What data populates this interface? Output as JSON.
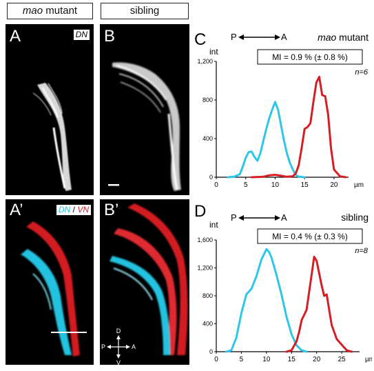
{
  "headers": {
    "mutant_label": {
      "italic": "mao",
      "rest": " mutant"
    },
    "sibling_label": "sibling"
  },
  "panels": {
    "A": "A",
    "B": "B",
    "A2": "A’",
    "B2": "B’",
    "dn_tag": "DN",
    "dn_tag2": "DN",
    "slash": " / ",
    "vn_tag": "VN"
  },
  "compass": {
    "d": "D",
    "v": "V",
    "p": "P",
    "a": "A"
  },
  "charts": [
    {
      "letter": "C",
      "arrow_p": "P",
      "arrow_a": "A",
      "title": {
        "italic": "mao",
        "rest": " mutant"
      },
      "mi": "MI = 0.9 %  (± 0.8 %)",
      "n": "n=6",
      "ylabel": "int",
      "xunit": "µm",
      "yticks": [
        "0",
        "400",
        "800",
        "1,200"
      ],
      "xticks": [
        "0",
        "5",
        "10",
        "15",
        "20"
      ]
    },
    {
      "letter": "D",
      "arrow_p": "P",
      "arrow_a": "A",
      "title": {
        "italic": "",
        "rest": "sibling"
      },
      "mi": "MI = 0.4 %  (± 0.3 %)",
      "n": "n=8",
      "ylabel": "int",
      "xunit": "µm",
      "yticks": [
        "0",
        "400",
        "800",
        "1,200",
        "1,600"
      ],
      "xticks": [
        "0",
        "5",
        "10",
        "15",
        "20",
        "25"
      ]
    }
  ],
  "chart_data": [
    {
      "type": "line",
      "xlim": [
        0,
        22
      ],
      "ylim": [
        0,
        1200
      ],
      "xticks": [
        0,
        5,
        10,
        15,
        20
      ],
      "yticks": [
        0,
        400,
        800,
        1200
      ],
      "colors": {
        "DN": "#2ec6e8",
        "VN": "#d41e24"
      },
      "series": [
        {
          "name": "DN",
          "x": [
            2,
            3,
            4,
            4.5,
            5,
            5.5,
            6,
            6.5,
            7,
            7.5,
            8,
            8.5,
            9,
            9.5,
            10,
            10.5,
            11,
            11.5,
            12,
            12.5,
            13,
            13.5,
            14,
            15
          ],
          "y": [
            0,
            5,
            30,
            110,
            200,
            260,
            265,
            210,
            170,
            250,
            380,
            500,
            610,
            700,
            780,
            700,
            540,
            380,
            250,
            150,
            80,
            25,
            5,
            0
          ]
        },
        {
          "name": "VN",
          "x": [
            6,
            8,
            9,
            10,
            11,
            12,
            13,
            13.5,
            14,
            14.5,
            15,
            15.5,
            16,
            16.5,
            17,
            17.5,
            18,
            18.5,
            19,
            19.5,
            20,
            21,
            22
          ],
          "y": [
            0,
            5,
            20,
            25,
            15,
            5,
            10,
            40,
            120,
            300,
            500,
            520,
            560,
            780,
            980,
            1040,
            850,
            840,
            650,
            300,
            80,
            10,
            0
          ]
        }
      ]
    },
    {
      "type": "line",
      "xlim": [
        0,
        28
      ],
      "ylim": [
        0,
        1600
      ],
      "xticks": [
        0,
        5,
        10,
        15,
        20,
        25
      ],
      "yticks": [
        0,
        400,
        800,
        1200,
        1600
      ],
      "colors": {
        "DN": "#2ec6e8",
        "VN": "#d41e24"
      },
      "series": [
        {
          "name": "DN",
          "x": [
            2,
            3,
            4,
            5,
            6,
            7,
            8,
            9,
            10,
            10.5,
            11,
            12,
            13,
            14,
            15,
            16,
            17,
            18
          ],
          "y": [
            0,
            20,
            200,
            550,
            820,
            900,
            1080,
            1320,
            1470,
            1430,
            1350,
            1100,
            820,
            500,
            250,
            90,
            20,
            0
          ]
        },
        {
          "name": "VN",
          "x": [
            14,
            15,
            16,
            16.5,
            17,
            18,
            19,
            19.5,
            20,
            21,
            21.5,
            22,
            22.5,
            23,
            24,
            25,
            26,
            27
          ],
          "y": [
            0,
            20,
            150,
            280,
            450,
            600,
            1100,
            1360,
            1300,
            950,
            800,
            820,
            600,
            380,
            180,
            100,
            20,
            0
          ]
        }
      ]
    }
  ]
}
